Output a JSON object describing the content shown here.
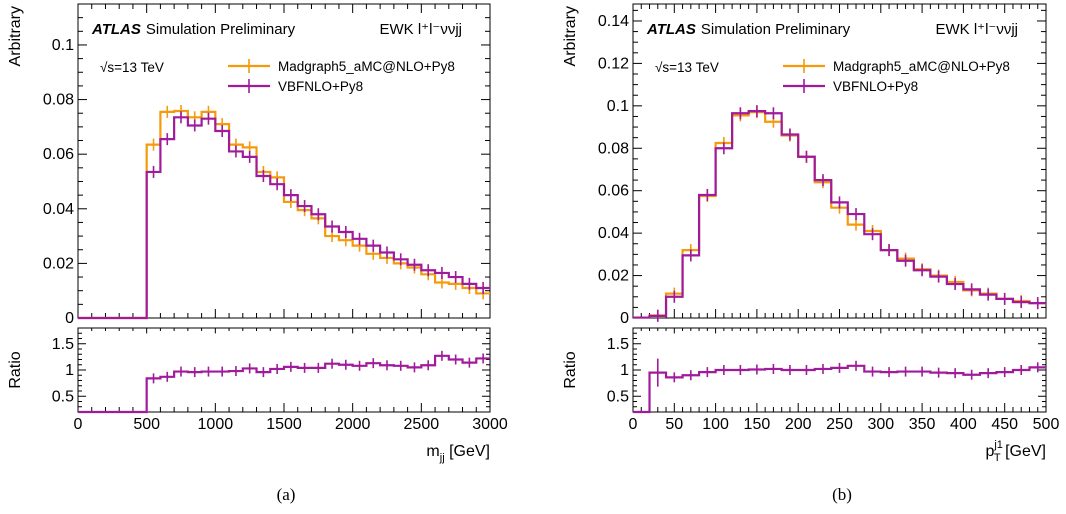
{
  "colors": {
    "madgraph": "#f59a0a",
    "vbfnlo": "#a01a9c"
  },
  "figure_labels": [
    "(a)",
    "(b)"
  ],
  "chart_data": [
    {
      "type": "line",
      "panel": "a",
      "experiment": "ATLAS",
      "status": "Simulation Preliminary",
      "process": "EWK l⁺l⁻ννjj",
      "energy": "√s=13 TeV",
      "xlabel": "m_jj [GeV]",
      "xlabel_main": "m",
      "xlabel_sub": "jj",
      "xlabel_unit": "[GeV]",
      "ylabel": "Arbitrary",
      "ratio_ylabel": "Ratio",
      "xlim": [
        0,
        3000
      ],
      "ylim": [
        0,
        0.115
      ],
      "ratio_ylim": [
        0.2,
        1.8
      ],
      "xticks": [
        0,
        500,
        1000,
        1500,
        2000,
        2500,
        3000
      ],
      "yticks": [
        0,
        0.02,
        0.04,
        0.06,
        0.08,
        0.1
      ],
      "ytick_labels": [
        "0",
        "0.02",
        "0.04",
        "0.06",
        "0.08",
        "0.1"
      ],
      "ratio_yticks": [
        0.5,
        1,
        1.5
      ],
      "ratio_ytick_labels": [
        "0.5",
        "1",
        "1.5"
      ],
      "legend_position": "top-right",
      "bin_edges": [
        0,
        500,
        600,
        700,
        800,
        900,
        1000,
        1100,
        1200,
        1300,
        1400,
        1500,
        1600,
        1700,
        1800,
        1900,
        2000,
        2100,
        2200,
        2300,
        2400,
        2500,
        2600,
        2700,
        2800,
        2900,
        3000
      ],
      "series": [
        {
          "name": "Madgraph5_aMC@NLO+Py8",
          "color_key": "madgraph",
          "values": [
            0,
            0.0635,
            0.0755,
            0.0758,
            0.0735,
            0.0755,
            0.071,
            0.0635,
            0.0625,
            0.0535,
            0.0515,
            0.0425,
            0.0395,
            0.0365,
            0.03,
            0.0285,
            0.0265,
            0.0235,
            0.022,
            0.02,
            0.0185,
            0.016,
            0.013,
            0.0125,
            0.011,
            0.009
          ]
        },
        {
          "name": "VBFNLO+Py8",
          "color_key": "vbfnlo",
          "values": [
            0,
            0.0535,
            0.0655,
            0.0735,
            0.0705,
            0.073,
            0.0685,
            0.061,
            0.059,
            0.052,
            0.049,
            0.045,
            0.041,
            0.038,
            0.0335,
            0.0315,
            0.029,
            0.0265,
            0.024,
            0.0215,
            0.0195,
            0.0175,
            0.0165,
            0.015,
            0.0125,
            0.011
          ]
        }
      ],
      "ratio": [
        0.2,
        0.84,
        0.87,
        0.97,
        0.96,
        0.97,
        0.97,
        0.98,
        1.03,
        0.96,
        1.02,
        1.06,
        1.04,
        1.04,
        1.12,
        1.1,
        1.08,
        1.13,
        1.09,
        1.08,
        1.05,
        1.09,
        1.27,
        1.2,
        1.14,
        1.22
      ]
    },
    {
      "type": "line",
      "panel": "b",
      "experiment": "ATLAS",
      "status": "Simulation Preliminary",
      "process": "EWK l⁺l⁻ννjj",
      "energy": "√s=13 TeV",
      "xlabel": "p_T^j1 [GeV]",
      "xlabel_main": "p",
      "xlabel_sub": "T",
      "xlabel_sup": "j1",
      "xlabel_unit": "[GeV]",
      "ylabel": "Arbitrary",
      "ratio_ylabel": "Ratio",
      "xlim": [
        0,
        500
      ],
      "ylim": [
        0,
        0.148
      ],
      "ratio_ylim": [
        0.2,
        1.8
      ],
      "xticks": [
        0,
        50,
        100,
        150,
        200,
        250,
        300,
        350,
        400,
        450,
        500
      ],
      "yticks": [
        0,
        0.02,
        0.04,
        0.06,
        0.08,
        0.1,
        0.12,
        0.14
      ],
      "ytick_labels": [
        "0",
        "0.02",
        "0.04",
        "0.06",
        "0.08",
        "0.1",
        "0.12",
        "0.14"
      ],
      "ratio_yticks": [
        0.5,
        1,
        1.5
      ],
      "ratio_ytick_labels": [
        "0.5",
        "1",
        "1.5"
      ],
      "legend_position": "top-right",
      "bin_edges": [
        0,
        20,
        40,
        60,
        80,
        100,
        120,
        140,
        160,
        180,
        200,
        220,
        240,
        260,
        280,
        300,
        320,
        340,
        360,
        380,
        400,
        420,
        440,
        460,
        480,
        500
      ],
      "series": [
        {
          "name": "Madgraph5_aMC@NLO+Py8",
          "color_key": "madgraph",
          "values": [
            0.0002,
            0.0012,
            0.0115,
            0.032,
            0.0575,
            0.0825,
            0.0955,
            0.097,
            0.0925,
            0.086,
            0.076,
            0.064,
            0.052,
            0.044,
            0.041,
            0.032,
            0.028,
            0.023,
            0.02,
            0.017,
            0.013,
            0.0115,
            0.009,
            0.008,
            0.007
          ]
        },
        {
          "name": "VBFNLO+Py8",
          "color_key": "vbfnlo",
          "values": [
            0.0002,
            0.001,
            0.01,
            0.0295,
            0.058,
            0.08,
            0.0965,
            0.0975,
            0.0965,
            0.0865,
            0.076,
            0.065,
            0.0545,
            0.049,
            0.0395,
            0.032,
            0.027,
            0.0225,
            0.0195,
            0.016,
            0.0135,
            0.011,
            0.009,
            0.0075,
            0.007
          ]
        }
      ],
      "ratio": [
        0.2,
        0.95,
        0.86,
        0.9,
        0.96,
        1.0,
        1.0,
        1.01,
        1.02,
        1.0,
        1.0,
        1.02,
        1.04,
        1.08,
        0.97,
        0.96,
        0.97,
        0.97,
        0.95,
        0.94,
        0.91,
        0.94,
        0.96,
        1.0,
        1.05
      ]
    }
  ]
}
